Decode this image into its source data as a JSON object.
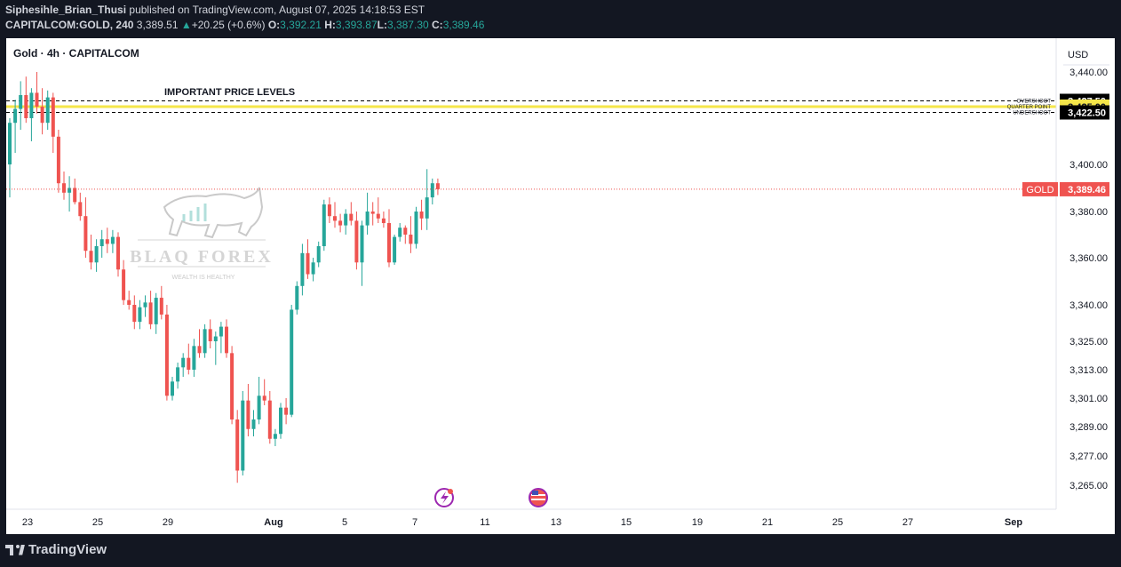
{
  "header": {
    "author": "Siphesihle_Brian_Thusi",
    "published": "published on TradingView.com, August 07, 2025 14:18:53 EST",
    "ticker": "CAPITALCOM:GOLD, 240",
    "last": "3,389.51",
    "change_arrow": "▲",
    "change": "+20.25 (+0.6%)",
    "o_label": "O:",
    "o": "3,392.21",
    "h_label": "H:",
    "h": "3,393.87",
    "l_label": "L:",
    "l": "3,387.30",
    "c_label": "C:",
    "c": "3,389.46"
  },
  "symbol_title": "Gold · 4h · CAPITALCOM",
  "footer": {
    "brand": "TradingView"
  },
  "watermark": {
    "brand": "BLAQ FOREX",
    "tagline": "WEALTH IS HEALTHY"
  },
  "chart_data": {
    "type": "candlestick",
    "currency": "USD",
    "y_ticks": [
      "3,440.00",
      "3,400.00",
      "3,380.00",
      "3,360.00",
      "3,340.00",
      "3,325.00",
      "3,313.00",
      "3,301.00",
      "3,289.00",
      "3,277.00",
      "3,265.00"
    ],
    "x_ticks": [
      "23",
      "25",
      "29",
      "Aug",
      "5",
      "7",
      "11",
      "13",
      "15",
      "19",
      "21",
      "25",
      "27",
      "Sep"
    ],
    "annotation": "IMPORTANT PRICE LEVELS",
    "levels": [
      {
        "label": "OVERSHOOT",
        "price": 3427.5,
        "price_label": "3,427.50",
        "style": "dashed",
        "color": "#000000"
      },
      {
        "label": "QUARTER POINT",
        "price": 3425.0,
        "price_label": "3,425.00",
        "style": "solid",
        "color": "#f5e64a"
      },
      {
        "label": "UNDERSHOOT",
        "price": 3422.5,
        "price_label": "3,422.50",
        "style": "dashed",
        "color": "#000000"
      }
    ],
    "current_price": {
      "symbol": "GOLD",
      "value": 3389.46,
      "label": "3,389.46"
    },
    "colors": {
      "up": "#26a69a",
      "down": "#ef5350",
      "quarter": "#f5e64a",
      "price_line": "#ef5350"
    },
    "candles": [
      [
        3400,
        3420,
        3386,
        3418
      ],
      [
        3418,
        3428,
        3405,
        3424
      ],
      [
        3424,
        3436,
        3415,
        3430
      ],
      [
        3430,
        3438,
        3418,
        3420
      ],
      [
        3420,
        3433,
        3410,
        3431
      ],
      [
        3431,
        3440,
        3422,
        3425
      ],
      [
        3425,
        3433,
        3413,
        3418
      ],
      [
        3418,
        3432,
        3415,
        3429
      ],
      [
        3429,
        3431,
        3405,
        3412
      ],
      [
        3412,
        3415,
        3388,
        3392
      ],
      [
        3392,
        3397,
        3385,
        3388
      ],
      [
        3388,
        3395,
        3380,
        3390
      ],
      [
        3390,
        3394,
        3383,
        3384
      ],
      [
        3384,
        3388,
        3376,
        3378
      ],
      [
        3378,
        3386,
        3360,
        3363
      ],
      [
        3363,
        3370,
        3355,
        3358
      ],
      [
        3358,
        3368,
        3354,
        3365
      ],
      [
        3365,
        3372,
        3360,
        3368
      ],
      [
        3368,
        3373,
        3362,
        3366
      ],
      [
        3366,
        3372,
        3362,
        3369
      ],
      [
        3369,
        3371,
        3352,
        3355
      ],
      [
        3355,
        3359,
        3340,
        3342
      ],
      [
        3342,
        3346,
        3338,
        3340
      ],
      [
        3340,
        3344,
        3330,
        3333
      ],
      [
        3333,
        3342,
        3330,
        3339
      ],
      [
        3339,
        3344,
        3335,
        3341
      ],
      [
        3341,
        3346,
        3330,
        3332
      ],
      [
        3332,
        3345,
        3328,
        3343
      ],
      [
        3343,
        3348,
        3334,
        3336
      ],
      [
        3336,
        3340,
        3300,
        3302
      ],
      [
        3302,
        3310,
        3300,
        3308
      ],
      [
        3308,
        3316,
        3305,
        3314
      ],
      [
        3314,
        3320,
        3310,
        3318
      ],
      [
        3318,
        3324,
        3311,
        3313
      ],
      [
        3313,
        3326,
        3310,
        3323
      ],
      [
        3323,
        3330,
        3318,
        3320
      ],
      [
        3320,
        3332,
        3318,
        3330
      ],
      [
        3330,
        3334,
        3322,
        3325
      ],
      [
        3325,
        3329,
        3315,
        3327
      ],
      [
        3327,
        3333,
        3320,
        3331
      ],
      [
        3331,
        3334,
        3318,
        3320
      ],
      [
        3320,
        3323,
        3290,
        3292
      ],
      [
        3292,
        3296,
        3266,
        3271
      ],
      [
        3271,
        3304,
        3269,
        3300
      ],
      [
        3300,
        3307,
        3285,
        3288
      ],
      [
        3288,
        3296,
        3285,
        3292
      ],
      [
        3292,
        3310,
        3290,
        3302
      ],
      [
        3302,
        3309,
        3298,
        3300
      ],
      [
        3300,
        3304,
        3282,
        3284
      ],
      [
        3284,
        3288,
        3281,
        3286
      ],
      [
        3286,
        3299,
        3284,
        3297
      ],
      [
        3297,
        3301,
        3290,
        3294
      ],
      [
        3294,
        3340,
        3293,
        3338
      ],
      [
        3338,
        3350,
        3336,
        3348
      ],
      [
        3348,
        3366,
        3344,
        3362
      ],
      [
        3362,
        3368,
        3351,
        3353
      ],
      [
        3353,
        3360,
        3350,
        3358
      ],
      [
        3358,
        3367,
        3356,
        3365
      ],
      [
        3365,
        3385,
        3363,
        3383
      ],
      [
        3383,
        3386,
        3375,
        3378
      ],
      [
        3378,
        3384,
        3373,
        3376
      ],
      [
        3376,
        3379,
        3371,
        3374
      ],
      [
        3374,
        3381,
        3370,
        3379
      ],
      [
        3379,
        3384,
        3374,
        3376
      ],
      [
        3376,
        3380,
        3355,
        3358
      ],
      [
        3358,
        3376,
        3348,
        3374
      ],
      [
        3374,
        3388,
        3370,
        3380
      ],
      [
        3380,
        3384,
        3374,
        3379
      ],
      [
        3379,
        3386,
        3375,
        3377
      ],
      [
        3377,
        3380,
        3373,
        3375
      ],
      [
        3375,
        3381,
        3356,
        3358
      ],
      [
        3358,
        3370,
        3357,
        3369
      ],
      [
        3369,
        3375,
        3367,
        3373
      ],
      [
        3373,
        3374,
        3366,
        3370
      ],
      [
        3370,
        3378,
        3362,
        3366
      ],
      [
        3366,
        3382,
        3364,
        3380
      ],
      [
        3380,
        3385,
        3372,
        3377
      ],
      [
        3377,
        3398,
        3372,
        3386
      ],
      [
        3386,
        3394,
        3383,
        3392
      ],
      [
        3392,
        3394,
        3387,
        3389.46
      ]
    ]
  }
}
